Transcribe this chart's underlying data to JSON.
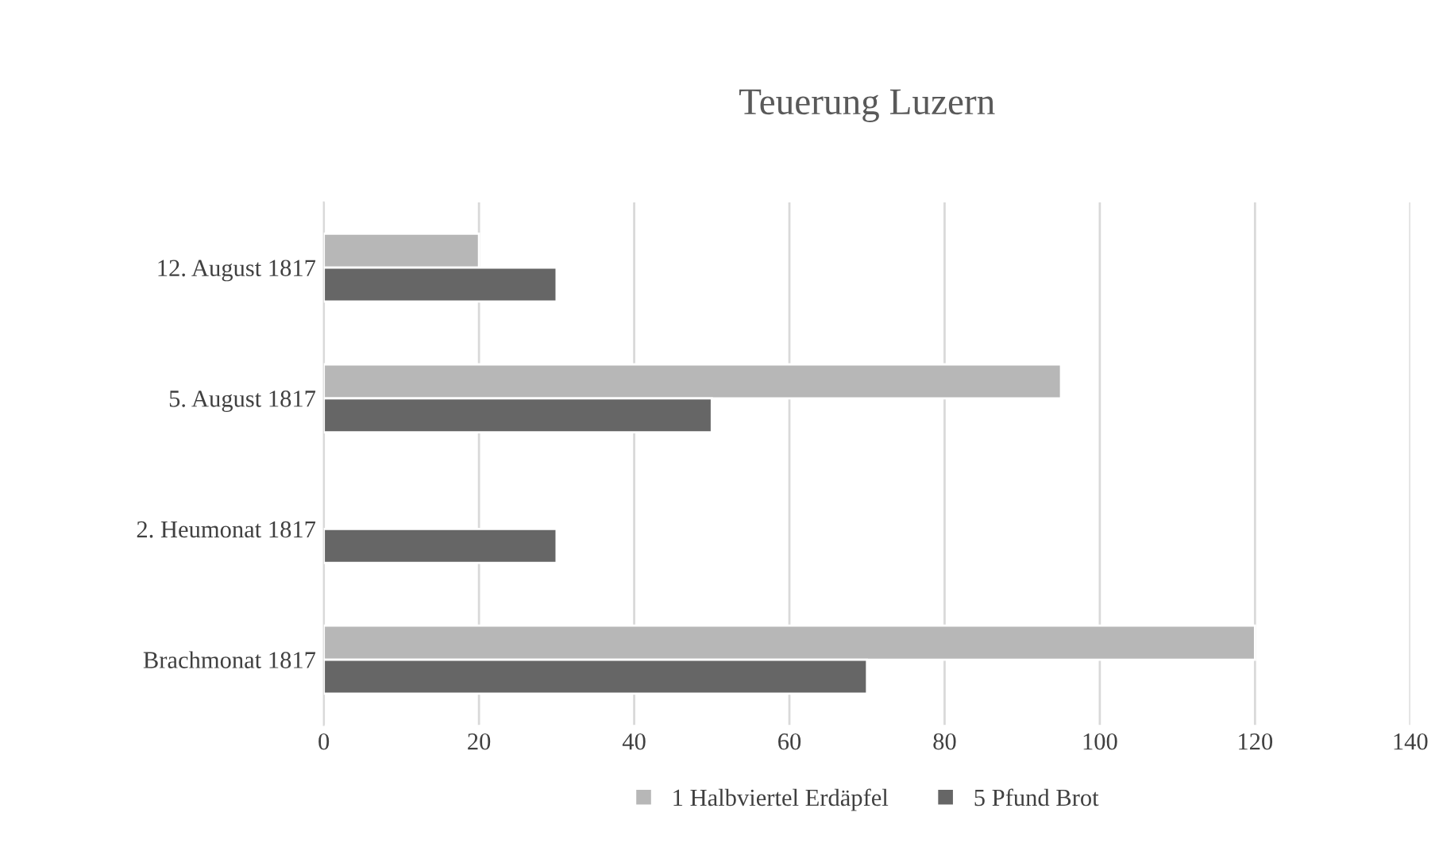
{
  "chart_data": {
    "type": "bar",
    "orientation": "horizontal",
    "title": "Teuerung Luzern",
    "categories": [
      "12. August 1817",
      "5. August 1817",
      "2. Heumonat 1817",
      "Brachmonat 1817"
    ],
    "series": [
      {
        "name": "1 Halbviertel Erdäpfel",
        "color": "#b7b7b7",
        "values": [
          20,
          95,
          null,
          120
        ]
      },
      {
        "name": "5 Pfund Brot",
        "color": "#666666",
        "values": [
          30,
          50,
          30,
          70
        ]
      }
    ],
    "xlim": [
      0,
      140
    ],
    "xticks": [
      0,
      20,
      40,
      60,
      80,
      100,
      120,
      140
    ],
    "grid": "x",
    "legend": "bottom"
  }
}
